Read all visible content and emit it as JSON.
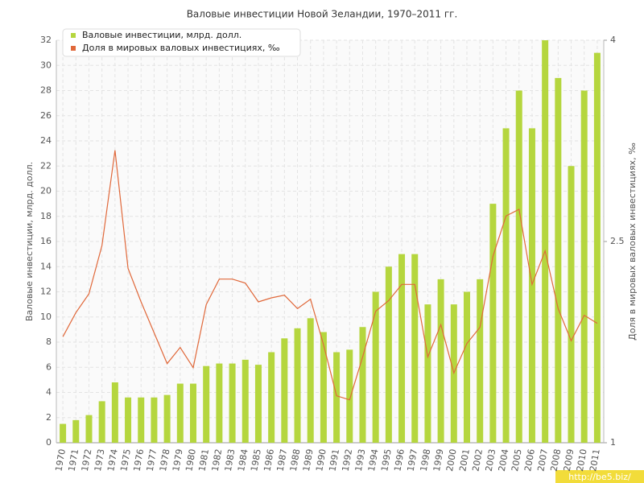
{
  "chart_data": {
    "type": "bar_line",
    "title": "Валовые инвестиции Новой Зеландии, 1970–2011 гг.",
    "y_label": "Валовые инвестиции, млрд. долл.",
    "y2_label": "Доля в мировых валовых инвестициях, ‰",
    "watermark": "http://be5.biz/",
    "categories": [
      "1970",
      "1971",
      "1972",
      "1973",
      "1974",
      "1975",
      "1976",
      "1977",
      "1978",
      "1979",
      "1980",
      "1981",
      "1982",
      "1983",
      "1984",
      "1985",
      "1986",
      "1987",
      "1988",
      "1989",
      "1990",
      "1991",
      "1992",
      "1993",
      "1994",
      "1995",
      "1996",
      "1997",
      "1998",
      "1999",
      "2000",
      "2001",
      "2002",
      "2003",
      "2004",
      "2005",
      "2006",
      "2007",
      "2008",
      "2009",
      "2010",
      "2011"
    ],
    "series": [
      {
        "name": "Валовые инвестиции, млрд. долл.",
        "type": "bar",
        "color": "#b5d63e",
        "values": [
          1.5,
          1.8,
          2.2,
          3.3,
          4.8,
          3.6,
          3.6,
          3.6,
          3.8,
          4.7,
          4.7,
          6.1,
          6.3,
          6.3,
          6.6,
          6.2,
          7.2,
          8.3,
          9.1,
          9.9,
          8.8,
          7.2,
          7.4,
          9.2,
          12,
          14,
          15,
          15,
          11,
          13,
          11,
          12,
          13,
          19,
          25,
          28,
          25,
          32,
          29,
          22,
          28,
          31
        ]
      },
      {
        "name": "Доля в мировых валовых инвестициях, ‰",
        "type": "line",
        "axis": "y2",
        "color": "#e0683a",
        "values": [
          1.79,
          1.97,
          2.11,
          2.47,
          3.18,
          2.3,
          2.05,
          1.82,
          1.59,
          1.71,
          1.56,
          2.03,
          2.22,
          2.22,
          2.19,
          2.05,
          2.08,
          2.1,
          2.0,
          2.07,
          1.73,
          1.35,
          1.32,
          1.64,
          1.98,
          2.06,
          2.18,
          2.18,
          1.64,
          1.88,
          1.52,
          1.74,
          1.86,
          2.39,
          2.69,
          2.74,
          2.18,
          2.43,
          2.0,
          1.76,
          1.95,
          1.89
        ]
      }
    ],
    "ylim": [
      0,
      32
    ],
    "yticks": [
      0,
      2,
      4,
      6,
      8,
      10,
      12,
      14,
      16,
      18,
      20,
      22,
      24,
      26,
      28,
      30,
      32
    ],
    "y2lim": [
      1,
      4
    ],
    "y2ticks": [
      1,
      2.5,
      4
    ],
    "grid": true,
    "legend": "top-left"
  }
}
